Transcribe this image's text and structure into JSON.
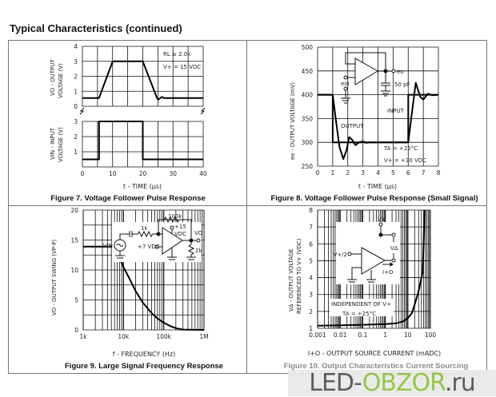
{
  "page": {
    "title": "Typical Characteristics (continued)"
  },
  "watermark": {
    "part1": "LED-",
    "part2": "OBZOR",
    "part3": ".ru"
  },
  "figures": {
    "fig7": {
      "caption": "Figure 7. Voltage Follower Pulse Response",
      "ylabel_top_1": "VO - OUTPUT",
      "ylabel_top_2": "VOLTAGE (V)",
      "ylabel_bot_1": "VIN - INPUT",
      "ylabel_bot_2": "VOLTAGE (V)",
      "xlabel": "t - TIME (µs)",
      "note1": "RL ≥ 2.0k",
      "note2": "V+ = 15 VDC"
    },
    "fig8": {
      "caption": "Figure 8. Voltage Follower Pulse Response (Small Signal)",
      "ylabel": "eo - OUTPUT VOLTAGE (mV)",
      "xlabel": "t - TIME (µs)",
      "output_label": "OUTPUT",
      "input_label": "INPUT",
      "note1": "TA = +25°C",
      "note2": "V+ = +30 VDC",
      "circuit": {
        "eo": "eo",
        "ein": "ein",
        "cap": "50 pF"
      }
    },
    "fig9": {
      "caption": "Figure 9. Large Signal Frequency Response",
      "ylabel": "VO - OUTPUT SWING (VP-P)",
      "xlabel": "f - FREQUENCY (Hz)",
      "circuit": {
        "rf": "100k",
        "rin": "1k",
        "vplus": "+15",
        "vdc": "VDC",
        "vo": "VO",
        "vin": "VIN",
        "bias": "+7 VDC",
        "rl": "2k"
      }
    },
    "fig10": {
      "caption": "Figure 10. Output Characteristics Current Sourcing",
      "ylabel1": "VΔ - OUTPUT VOLTAGE",
      "ylabel2": "REFERENCED TO V+ (VDC)",
      "xlabel": "I+O - OUTPUT SOURCE CURRENT (mADC)",
      "note1": "INDEPENDENT OF V+",
      "note2": "TA = +25°C",
      "circuit": {
        "vplus": "V+",
        "vhalf": "V+/2",
        "vdelta": "VΔ",
        "io": "I+O"
      }
    }
  },
  "chart_data": [
    {
      "id": "fig7",
      "type": "line",
      "title": "Figure 7. Voltage Follower Pulse Response",
      "xlabel": "t - TIME (µs)",
      "xlim": [
        0,
        40
      ],
      "xticks": [
        "0",
        "10",
        "20",
        "30",
        "40"
      ],
      "xtick_values": [
        0,
        10,
        20,
        30,
        40
      ],
      "panels": [
        {
          "name": "output",
          "ylabel": "VO - OUTPUT VOLTAGE (V)",
          "ylim": [
            0,
            4
          ],
          "yticks": [
            "0",
            "1",
            "2",
            "3",
            "4"
          ],
          "ytick_values": [
            0,
            1,
            2,
            3,
            4
          ],
          "x": [
            0,
            5.5,
            10,
            20,
            24.5,
            25,
            25.5,
            26.3,
            27,
            40
          ],
          "y": [
            0.55,
            0.55,
            3,
            3,
            0.65,
            0.45,
            0.5,
            0.62,
            0.55,
            0.55
          ]
        },
        {
          "name": "input",
          "ylabel": "VIN - INPUT VOLTAGE (V)",
          "ylim": [
            0,
            3
          ],
          "yticks": [
            "1",
            "2",
            "3"
          ],
          "ytick_values": [
            1,
            2,
            3
          ],
          "x": [
            0,
            5.5,
            5.5,
            20,
            20,
            40
          ],
          "y": [
            0.5,
            0.5,
            3,
            3,
            0.5,
            0.5
          ]
        }
      ],
      "grid": true
    },
    {
      "id": "fig8",
      "type": "line",
      "title": "Figure 8. Voltage Follower Pulse Response (Small Signal)",
      "xlabel": "t - TIME (µs)",
      "ylabel": "eo - OUTPUT VOLTAGE (mV)",
      "xlim": [
        0,
        8
      ],
      "ylim": [
        250,
        500
      ],
      "xticks": [
        "0",
        "1",
        "2",
        "3",
        "4",
        "5",
        "6",
        "7",
        "8"
      ],
      "xtick_values": [
        0,
        1,
        2,
        3,
        4,
        5,
        6,
        7,
        8
      ],
      "yticks": [
        "250",
        "300",
        "350",
        "400",
        "450",
        "500"
      ],
      "ytick_values": [
        250,
        300,
        350,
        400,
        450,
        500
      ],
      "series": [
        {
          "name": "INPUT",
          "x": [
            0,
            1,
            1,
            6,
            6,
            8
          ],
          "y": [
            400,
            400,
            300,
            300,
            400,
            400
          ]
        },
        {
          "name": "OUTPUT",
          "x": [
            0,
            1,
            1.2,
            1.45,
            1.7,
            1.9,
            2.1,
            2.3,
            2.5,
            2.75,
            3,
            3.2,
            3.4,
            6,
            6.2,
            6.5,
            6.8,
            7,
            7.3,
            7.6,
            8
          ],
          "y": [
            400,
            400,
            350,
            290,
            265,
            282,
            311,
            305,
            294,
            300,
            302,
            299,
            300,
            300,
            350,
            425,
            395,
            390,
            402,
            399,
            400
          ]
        }
      ],
      "grid": true
    },
    {
      "id": "fig9",
      "type": "line",
      "title": "Figure 9. Large Signal Frequency Response",
      "xlabel": "f - FREQUENCY (Hz)",
      "ylabel": "VO - OUTPUT SWING (VP-P)",
      "xscale": "log",
      "xlim": [
        1000,
        1000000
      ],
      "ylim": [
        0,
        20
      ],
      "xticks": [
        "1k",
        "10k",
        "100k",
        "1M"
      ],
      "xtick_values": [
        1000,
        10000,
        100000,
        1000000
      ],
      "yticks": [
        "0",
        "5",
        "10",
        "15",
        "20"
      ],
      "ytick_values": [
        0,
        5,
        10,
        15,
        20
      ],
      "series": [
        {
          "name": "VO",
          "x": [
            1000,
            5000,
            6000,
            8000,
            10000,
            15000,
            20000,
            30000,
            50000,
            70000,
            100000,
            150000,
            200000,
            300000,
            1000000
          ],
          "y": [
            13.9,
            13.9,
            13.5,
            12,
            10.5,
            8.2,
            6.5,
            4.6,
            2.8,
            1.9,
            1.2,
            0.6,
            0.3,
            0.05,
            0
          ]
        }
      ],
      "grid": true
    },
    {
      "id": "fig10",
      "type": "line",
      "title": "Figure 10. Output Characteristics Current Sourcing",
      "xlabel": "I+O - OUTPUT SOURCE CURRENT (mADC)",
      "ylabel": "VΔ - OUTPUT VOLTAGE REFERENCED TO V+ (VDC)",
      "xscale": "log",
      "xlim": [
        0.001,
        100
      ],
      "ylim": [
        1,
        8
      ],
      "xticks": [
        "0.001",
        "0.01",
        "0.1",
        "1",
        "10",
        "100"
      ],
      "xtick_values": [
        0.001,
        0.01,
        0.1,
        1,
        10,
        100
      ],
      "yticks": [
        "1",
        "2",
        "3",
        "4",
        "5",
        "6",
        "7",
        "8"
      ],
      "ytick_values": [
        1,
        2,
        3,
        4,
        5,
        6,
        7,
        8
      ],
      "series": [
        {
          "name": "VΔ",
          "x": [
            0.001,
            0.01,
            0.1,
            1,
            3,
            6,
            10,
            15,
            20,
            30,
            45,
            50,
            55
          ],
          "y": [
            1.15,
            1.18,
            1.21,
            1.25,
            1.3,
            1.4,
            1.6,
            1.9,
            2.4,
            3.2,
            4.3,
            6,
            8
          ]
        }
      ],
      "grid": true
    }
  ]
}
